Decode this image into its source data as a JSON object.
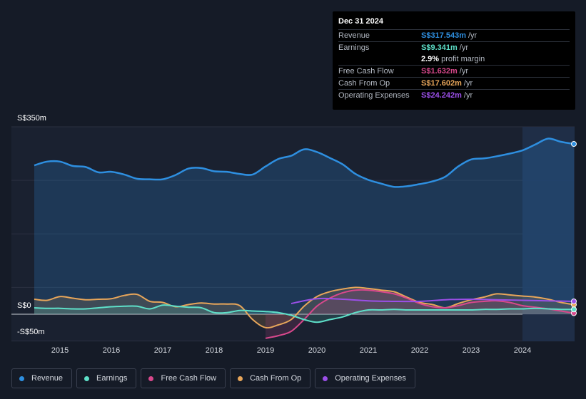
{
  "tooltip": {
    "date": "Dec 31 2024",
    "rows": [
      {
        "label": "Revenue",
        "value": "S$317.543m",
        "unit": "/yr",
        "color": "#2e8fe0"
      },
      {
        "label": "Earnings",
        "value": "S$9.341m",
        "unit": "/yr",
        "color": "#5ee0c9"
      },
      {
        "label": "",
        "value": "2.9%",
        "unit": "profit margin",
        "color": "#ffffff"
      },
      {
        "label": "Free Cash Flow",
        "value": "S$1.632m",
        "unit": "/yr",
        "color": "#d8488c"
      },
      {
        "label": "Cash From Op",
        "value": "S$17.602m",
        "unit": "/yr",
        "color": "#e8a65a"
      },
      {
        "label": "Operating Expenses",
        "value": "S$24.242m",
        "unit": "/yr",
        "color": "#9b4fe8"
      }
    ]
  },
  "legend": [
    {
      "label": "Revenue",
      "color": "#2e8fe0"
    },
    {
      "label": "Earnings",
      "color": "#5ee0c9"
    },
    {
      "label": "Free Cash Flow",
      "color": "#d8488c"
    },
    {
      "label": "Cash From Op",
      "color": "#e8a65a"
    },
    {
      "label": "Operating Expenses",
      "color": "#9b4fe8"
    }
  ],
  "chart_data": {
    "type": "line",
    "title": "",
    "xlabel": "",
    "ylabel": "",
    "ylim": [
      -50,
      350
    ],
    "xlim": [
      2014.5,
      2025.0
    ],
    "y_tick_labels": [
      "S$350m",
      "S$0",
      "-S$50m"
    ],
    "x_tick_labels": [
      "2015",
      "2016",
      "2017",
      "2018",
      "2019",
      "2020",
      "2021",
      "2022",
      "2023",
      "2024"
    ],
    "highlight_from": 2024.0,
    "series": [
      {
        "name": "Revenue",
        "color": "#2e8fe0",
        "fill": true,
        "points": [
          [
            2014.5,
            278
          ],
          [
            2014.75,
            285
          ],
          [
            2015.0,
            285
          ],
          [
            2015.25,
            277
          ],
          [
            2015.5,
            275
          ],
          [
            2015.75,
            265
          ],
          [
            2016.0,
            266
          ],
          [
            2016.25,
            261
          ],
          [
            2016.5,
            253
          ],
          [
            2016.75,
            252
          ],
          [
            2017.0,
            252
          ],
          [
            2017.25,
            260
          ],
          [
            2017.5,
            272
          ],
          [
            2017.75,
            273
          ],
          [
            2018.0,
            267
          ],
          [
            2018.25,
            266
          ],
          [
            2018.5,
            262
          ],
          [
            2018.75,
            261
          ],
          [
            2019.0,
            276
          ],
          [
            2019.25,
            290
          ],
          [
            2019.5,
            296
          ],
          [
            2019.75,
            308
          ],
          [
            2020.0,
            303
          ],
          [
            2020.25,
            292
          ],
          [
            2020.5,
            280
          ],
          [
            2020.75,
            262
          ],
          [
            2021.0,
            251
          ],
          [
            2021.25,
            244
          ],
          [
            2021.5,
            238
          ],
          [
            2021.75,
            239
          ],
          [
            2022.0,
            243
          ],
          [
            2022.25,
            248
          ],
          [
            2022.5,
            257
          ],
          [
            2022.75,
            276
          ],
          [
            2023.0,
            289
          ],
          [
            2023.25,
            291
          ],
          [
            2023.5,
            295
          ],
          [
            2023.75,
            300
          ],
          [
            2024.0,
            306
          ],
          [
            2024.25,
            317
          ],
          [
            2024.5,
            328
          ],
          [
            2024.75,
            322
          ],
          [
            2025.0,
            318
          ]
        ]
      },
      {
        "name": "Earnings",
        "color": "#5ee0c9",
        "fill": true,
        "points": [
          [
            2014.5,
            12
          ],
          [
            2014.75,
            11
          ],
          [
            2015.0,
            11
          ],
          [
            2015.25,
            10
          ],
          [
            2015.5,
            10
          ],
          [
            2015.75,
            12
          ],
          [
            2016.0,
            14
          ],
          [
            2016.25,
            15
          ],
          [
            2016.5,
            15
          ],
          [
            2016.75,
            10
          ],
          [
            2017.0,
            17
          ],
          [
            2017.25,
            15
          ],
          [
            2017.5,
            13
          ],
          [
            2017.75,
            12
          ],
          [
            2018.0,
            3
          ],
          [
            2018.25,
            3
          ],
          [
            2018.5,
            7
          ],
          [
            2018.75,
            6
          ],
          [
            2019.0,
            5
          ],
          [
            2019.25,
            3
          ],
          [
            2019.5,
            -2
          ],
          [
            2019.75,
            -10
          ],
          [
            2020.0,
            -15
          ],
          [
            2020.25,
            -10
          ],
          [
            2020.5,
            -5
          ],
          [
            2020.75,
            3
          ],
          [
            2021.0,
            8
          ],
          [
            2021.25,
            8
          ],
          [
            2021.5,
            9
          ],
          [
            2021.75,
            8
          ],
          [
            2022.0,
            8
          ],
          [
            2022.25,
            8
          ],
          [
            2022.5,
            8
          ],
          [
            2022.75,
            8
          ],
          [
            2023.0,
            8
          ],
          [
            2023.25,
            9
          ],
          [
            2023.5,
            9
          ],
          [
            2023.75,
            10
          ],
          [
            2024.0,
            10
          ],
          [
            2024.25,
            11
          ],
          [
            2024.5,
            10
          ],
          [
            2024.75,
            9
          ],
          [
            2025.0,
            9
          ]
        ]
      },
      {
        "name": "Free Cash Flow",
        "color": "#d8488c",
        "fill": true,
        "points": [
          [
            2019.0,
            -45
          ],
          [
            2019.25,
            -40
          ],
          [
            2019.5,
            -32
          ],
          [
            2019.75,
            -10
          ],
          [
            2020.0,
            15
          ],
          [
            2020.25,
            30
          ],
          [
            2020.5,
            40
          ],
          [
            2020.75,
            45
          ],
          [
            2021.0,
            45
          ],
          [
            2021.25,
            42
          ],
          [
            2021.5,
            38
          ],
          [
            2021.75,
            30
          ],
          [
            2022.0,
            20
          ],
          [
            2022.25,
            14
          ],
          [
            2022.5,
            12
          ],
          [
            2022.75,
            16
          ],
          [
            2023.0,
            22
          ],
          [
            2023.25,
            24
          ],
          [
            2023.5,
            25
          ],
          [
            2023.75,
            22
          ],
          [
            2024.0,
            16
          ],
          [
            2024.25,
            13
          ],
          [
            2024.5,
            10
          ],
          [
            2024.75,
            6
          ],
          [
            2025.0,
            2
          ]
        ]
      },
      {
        "name": "Cash From Op",
        "color": "#e8a65a",
        "fill": true,
        "points": [
          [
            2014.5,
            28
          ],
          [
            2014.75,
            26
          ],
          [
            2015.0,
            33
          ],
          [
            2015.25,
            30
          ],
          [
            2015.5,
            27
          ],
          [
            2015.75,
            28
          ],
          [
            2016.0,
            29
          ],
          [
            2016.25,
            35
          ],
          [
            2016.5,
            37
          ],
          [
            2016.75,
            24
          ],
          [
            2017.0,
            22
          ],
          [
            2017.25,
            14
          ],
          [
            2017.5,
            18
          ],
          [
            2017.75,
            21
          ],
          [
            2018.0,
            19
          ],
          [
            2018.25,
            19
          ],
          [
            2018.5,
            16
          ],
          [
            2018.75,
            -10
          ],
          [
            2019.0,
            -25
          ],
          [
            2019.25,
            -20
          ],
          [
            2019.5,
            -10
          ],
          [
            2019.75,
            15
          ],
          [
            2020.0,
            33
          ],
          [
            2020.25,
            42
          ],
          [
            2020.5,
            47
          ],
          [
            2020.75,
            50
          ],
          [
            2021.0,
            48
          ],
          [
            2021.25,
            45
          ],
          [
            2021.5,
            42
          ],
          [
            2021.75,
            32
          ],
          [
            2022.0,
            22
          ],
          [
            2022.25,
            18
          ],
          [
            2022.5,
            12
          ],
          [
            2022.75,
            20
          ],
          [
            2023.0,
            27
          ],
          [
            2023.25,
            32
          ],
          [
            2023.5,
            38
          ],
          [
            2023.75,
            36
          ],
          [
            2024.0,
            34
          ],
          [
            2024.25,
            32
          ],
          [
            2024.5,
            28
          ],
          [
            2024.75,
            22
          ],
          [
            2025.0,
            18
          ]
        ]
      },
      {
        "name": "Operating Expenses",
        "color": "#9b4fe8",
        "fill": false,
        "points": [
          [
            2019.5,
            20
          ],
          [
            2020.0,
            29
          ],
          [
            2020.5,
            28
          ],
          [
            2021.0,
            25
          ],
          [
            2021.5,
            24
          ],
          [
            2022.0,
            24
          ],
          [
            2022.5,
            27
          ],
          [
            2023.0,
            28
          ],
          [
            2023.5,
            27
          ],
          [
            2024.0,
            26
          ],
          [
            2024.5,
            25
          ],
          [
            2025.0,
            24
          ]
        ]
      }
    ]
  }
}
